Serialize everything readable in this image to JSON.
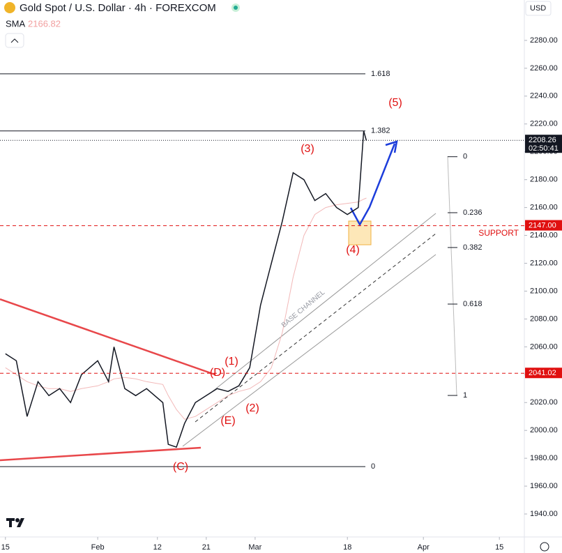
{
  "chart_data": {
    "type": "line",
    "title": "Gold Spot / U.S. Dollar · 4h · FOREXCOM",
    "currency": "USD",
    "sma_value": 2166.82,
    "x": [
      0,
      2,
      4,
      6,
      8,
      10,
      12,
      14,
      17,
      19,
      20,
      22,
      24,
      26,
      29,
      30,
      31.5,
      33,
      35,
      37,
      39,
      41,
      43,
      45,
      47,
      49,
      51,
      53,
      55,
      57,
      59,
      61,
      63,
      65,
      66,
      66.5
    ],
    "series": [
      {
        "color": "#131722",
        "values": [
          2055,
          2050,
          2010,
          2035,
          2025,
          2030,
          2020,
          2040,
          2050,
          2035,
          2060,
          2030,
          2025,
          2030,
          2020,
          1990,
          1988,
          2005,
          2020,
          2025,
          2030,
          2028,
          2032,
          2045,
          2090,
          2120,
          2150,
          2185,
          2180,
          2165,
          2170,
          2160,
          2155,
          2160,
          2215,
          2208
        ]
      },
      {
        "name": "SMA",
        "color": "#f2b8b8",
        "values": [
          2045,
          2040,
          2035,
          2032,
          2030,
          2030,
          2028,
          2030,
          2032,
          2035,
          2037,
          2038,
          2037,
          2035,
          2033,
          2025,
          2015,
          2008,
          2010,
          2015,
          2020,
          2025,
          2028,
          2030,
          2035,
          2045,
          2070,
          2110,
          2140,
          2155,
          2160,
          2162,
          2163,
          2164,
          2166,
          2166.82
        ]
      }
    ],
    "xlim": [
      -1,
      95.6
    ],
    "xticks": [
      {
        "value": 0,
        "label": "15"
      },
      {
        "value": 17,
        "label": "Feb"
      },
      {
        "value": 28,
        "label": "12"
      },
      {
        "value": 37,
        "label": "21"
      },
      {
        "value": 46,
        "label": "Mar"
      },
      {
        "value": 63,
        "label": "18"
      },
      {
        "value": 77,
        "label": "Apr"
      },
      {
        "value": 91,
        "label": "15"
      }
    ],
    "ylim": [
      1923.5,
      2309
    ],
    "yticks": [
      {
        "value": 1940,
        "label": "1940.00"
      },
      {
        "value": 1960,
        "label": "1960.00"
      },
      {
        "value": 1980,
        "label": "1980.00"
      },
      {
        "value": 2000,
        "label": "2000.00"
      },
      {
        "value": 2020,
        "label": "2020.00"
      },
      {
        "value": 2040,
        "label": "2040.00"
      },
      {
        "value": 2060,
        "label": "2060.00"
      },
      {
        "value": 2080,
        "label": "2080.00"
      },
      {
        "value": 2100,
        "label": "2100.00"
      },
      {
        "value": 2120,
        "label": "2120.00"
      },
      {
        "value": 2140,
        "label": "2140.00"
      },
      {
        "value": 2160,
        "label": "2160.00"
      },
      {
        "value": 2180,
        "label": "2180.00"
      },
      {
        "value": 2200,
        "label": "2200.00"
      },
      {
        "value": 2220,
        "label": "2220.00"
      },
      {
        "value": 2240,
        "label": "2240.00"
      },
      {
        "value": 2260,
        "label": "2260.00"
      },
      {
        "value": 2280,
        "label": "2280.00"
      }
    ],
    "levels": [
      {
        "label": "1.618",
        "value": 2256
      },
      {
        "label": "1.382",
        "value": 2215
      },
      {
        "label": "0",
        "value": 1974
      }
    ],
    "fib_levels": [
      {
        "label": "0",
        "value": 2196.5
      },
      {
        "label": "0.236",
        "value": 2156.3
      },
      {
        "label": "0.382",
        "value": 2131.3
      },
      {
        "label": "0.618",
        "value": 2090.7
      },
      {
        "label": "1",
        "value": 2025.1
      }
    ],
    "price_markers": [
      {
        "value": 2208.26,
        "label": "2208.26",
        "countdown": "02:50:41",
        "color": "#131722"
      },
      {
        "value": 2147,
        "label": "2147.00",
        "color": "#e01010"
      },
      {
        "value": 2041.02,
        "label": "2041.02",
        "color": "#e01010"
      }
    ],
    "support_label": "SUPPORT",
    "channel_label": "BASE CHANNEL",
    "wave_labels": [
      "(1)",
      "(2)",
      "(3)",
      "(4)",
      "(5)",
      "(C)",
      "(D)",
      "(E)"
    ]
  }
}
